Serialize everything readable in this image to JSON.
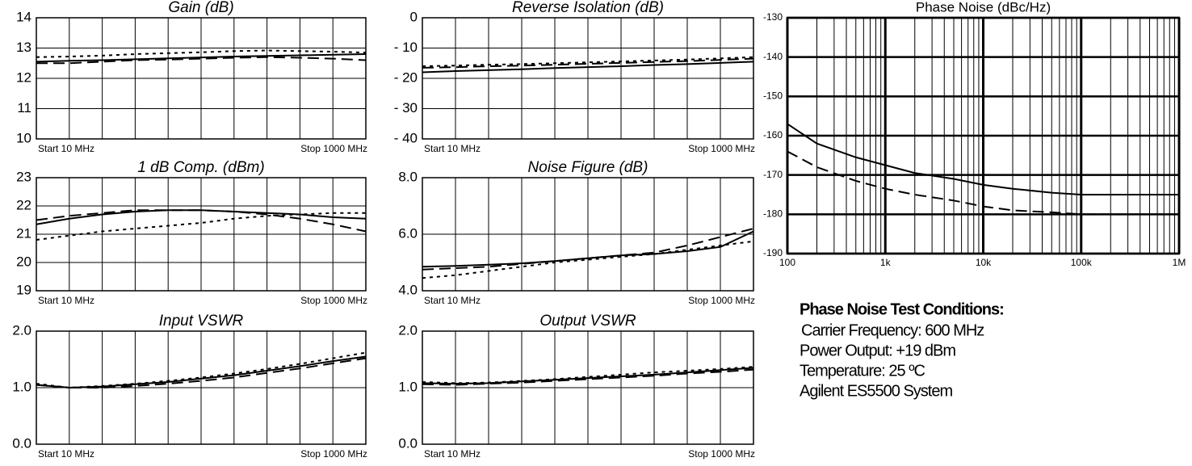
{
  "chart_data": [
    {
      "type": "line",
      "title": "Gain (dB)",
      "x_start_label": "Start 10 MHz",
      "x_stop_label": "Stop 1000 MHz",
      "x": [
        10,
        109,
        208,
        307,
        406,
        505,
        604,
        703,
        802,
        901,
        1000
      ],
      "xlim": [
        10,
        1000
      ],
      "ylim": [
        10,
        14
      ],
      "yticks": [
        10,
        11,
        12,
        13,
        14
      ],
      "grid": true,
      "series": [
        {
          "color": "#000000",
          "dash": "solid",
          "values": [
            12.55,
            12.58,
            12.6,
            12.63,
            12.66,
            12.69,
            12.72,
            12.74,
            12.76,
            12.78,
            12.8
          ]
        },
        {
          "color": "#000000",
          "dash": "dashed",
          "values": [
            12.5,
            12.5,
            12.55,
            12.6,
            12.62,
            12.65,
            12.68,
            12.7,
            12.68,
            12.65,
            12.6
          ]
        },
        {
          "color": "#000000",
          "dash": "dotted",
          "values": [
            12.7,
            12.72,
            12.75,
            12.8,
            12.83,
            12.86,
            12.9,
            12.92,
            12.9,
            12.88,
            12.85
          ]
        }
      ]
    },
    {
      "type": "line",
      "title": "Reverse Isolation (dB)",
      "x_start_label": "Start 10 MHz",
      "x_stop_label": "Stop 1000  MHz",
      "x": [
        10,
        109,
        208,
        307,
        406,
        505,
        604,
        703,
        802,
        901,
        1000
      ],
      "xlim": [
        10,
        1000
      ],
      "ylim": [
        -40,
        0
      ],
      "yticks": [
        {
          "value": -40,
          "label": "- 40"
        },
        {
          "value": -30,
          "label": "- 30"
        },
        {
          "value": -20,
          "label": "- 20"
        },
        {
          "value": -10,
          "label": "- 10"
        },
        0
      ],
      "grid": true,
      "series": [
        {
          "color": "#000000",
          "dash": "solid",
          "values": [
            -18,
            -17.6,
            -17.3,
            -17,
            -16.6,
            -16.3,
            -16,
            -15.6,
            -15.3,
            -14.9,
            -14.5
          ]
        },
        {
          "color": "#000000",
          "dash": "dashed",
          "values": [
            -16.5,
            -16.3,
            -16,
            -15.8,
            -15.5,
            -15.2,
            -14.9,
            -14.6,
            -14.3,
            -13.9,
            -13.5
          ]
        },
        {
          "color": "#000000",
          "dash": "dotted",
          "values": [
            -16,
            -15.8,
            -15.5,
            -15.3,
            -15,
            -14.7,
            -14.4,
            -14.1,
            -13.8,
            -13.4,
            -13
          ]
        }
      ]
    },
    {
      "type": "line",
      "title": "1 dB Comp. (dBm)",
      "x_start_label": "Start 10 MHz",
      "x_stop_label": "Stop 1000  MHz",
      "x": [
        10,
        109,
        208,
        307,
        406,
        505,
        604,
        703,
        802,
        901,
        1000
      ],
      "xlim": [
        10,
        1000
      ],
      "ylim": [
        19,
        23
      ],
      "yticks": [
        19,
        20,
        21,
        22,
        23
      ],
      "grid": true,
      "series": [
        {
          "color": "#000000",
          "dash": "solid",
          "values": [
            21.35,
            21.55,
            21.7,
            21.8,
            21.85,
            21.85,
            21.8,
            21.75,
            21.7,
            21.6,
            21.55
          ]
        },
        {
          "color": "#000000",
          "dash": "dashed",
          "values": [
            21.5,
            21.65,
            21.75,
            21.85,
            21.85,
            21.85,
            21.8,
            21.7,
            21.55,
            21.35,
            21.1
          ]
        },
        {
          "color": "#000000",
          "dash": "dotted",
          "values": [
            20.8,
            20.95,
            21.1,
            21.2,
            21.3,
            21.4,
            21.55,
            21.65,
            21.7,
            21.75,
            21.75
          ]
        }
      ]
    },
    {
      "type": "line",
      "title": "Noise Figure (dB)",
      "x_start_label": "Start 10 MHz",
      "x_stop_label": "Stop 1000  MHz",
      "x": [
        10,
        109,
        208,
        307,
        406,
        505,
        604,
        703,
        802,
        901,
        1000
      ],
      "xlim": [
        10,
        1000
      ],
      "ylim": [
        4,
        8
      ],
      "yticks": [
        {
          "value": 4,
          "label": "4.0"
        },
        {
          "value": 6,
          "label": "6.0"
        },
        {
          "value": 8,
          "label": "8.0"
        }
      ],
      "grid": true,
      "series": [
        {
          "color": "#000000",
          "dash": "solid",
          "values": [
            4.85,
            4.88,
            4.92,
            4.97,
            5.05,
            5.15,
            5.25,
            5.3,
            5.4,
            5.55,
            6.1
          ]
        },
        {
          "color": "#000000",
          "dash": "dashed",
          "values": [
            4.75,
            4.8,
            4.85,
            4.95,
            5.05,
            5.15,
            5.25,
            5.35,
            5.6,
            5.9,
            6.2
          ]
        },
        {
          "color": "#000000",
          "dash": "dotted",
          "values": [
            4.45,
            4.55,
            4.7,
            4.85,
            5.0,
            5.1,
            5.2,
            5.3,
            5.45,
            5.6,
            5.75
          ]
        }
      ]
    },
    {
      "type": "line",
      "title": "Input VSWR",
      "x_start_label": "Start 10 MHz",
      "x_stop_label": "Stop 1000 MHz",
      "x": [
        10,
        109,
        208,
        307,
        406,
        505,
        604,
        703,
        802,
        901,
        1000
      ],
      "xlim": [
        10,
        1000
      ],
      "ylim": [
        0,
        2
      ],
      "yticks": [
        {
          "value": 0,
          "label": "0.0"
        },
        {
          "value": 1,
          "label": "1.0"
        },
        {
          "value": 2,
          "label": "2.0"
        }
      ],
      "grid": true,
      "series": [
        {
          "color": "#000000",
          "dash": "solid",
          "values": [
            1.05,
            1.0,
            1.02,
            1.06,
            1.1,
            1.16,
            1.22,
            1.3,
            1.38,
            1.47,
            1.55
          ]
        },
        {
          "color": "#000000",
          "dash": "dashed",
          "values": [
            1.05,
            1.0,
            1.0,
            1.03,
            1.07,
            1.12,
            1.18,
            1.26,
            1.34,
            1.43,
            1.52
          ]
        },
        {
          "color": "#000000",
          "dash": "dotted",
          "values": [
            1.07,
            1.0,
            1.03,
            1.07,
            1.12,
            1.18,
            1.25,
            1.33,
            1.42,
            1.52,
            1.62
          ]
        }
      ]
    },
    {
      "type": "line",
      "title": "Output VSWR",
      "x_start_label": "Start 10 MHz",
      "x_stop_label": "Stop 1000 MHz",
      "x": [
        10,
        109,
        208,
        307,
        406,
        505,
        604,
        703,
        802,
        901,
        1000
      ],
      "xlim": [
        10,
        1000
      ],
      "ylim": [
        0,
        2
      ],
      "yticks": [
        {
          "value": 0,
          "label": "0.0"
        },
        {
          "value": 1,
          "label": "1.0"
        },
        {
          "value": 2,
          "label": "2.0"
        }
      ],
      "grid": true,
      "series": [
        {
          "color": "#000000",
          "dash": "solid",
          "values": [
            1.08,
            1.07,
            1.08,
            1.11,
            1.14,
            1.17,
            1.2,
            1.23,
            1.27,
            1.31,
            1.35
          ]
        },
        {
          "color": "#000000",
          "dash": "dashed",
          "values": [
            1.06,
            1.05,
            1.07,
            1.09,
            1.12,
            1.15,
            1.18,
            1.21,
            1.25,
            1.28,
            1.32
          ]
        },
        {
          "color": "#000000",
          "dash": "dotted",
          "values": [
            1.1,
            1.08,
            1.09,
            1.12,
            1.15,
            1.19,
            1.23,
            1.27,
            1.3,
            1.33,
            1.37
          ]
        }
      ]
    },
    {
      "type": "line",
      "title": "Phase Noise (dBc/Hz)",
      "xscale": "log",
      "x": [
        100,
        200,
        500,
        1000,
        2000,
        5000,
        10000,
        20000,
        50000,
        100000,
        200000,
        500000,
        1000000
      ],
      "xlim": [
        100,
        1000000
      ],
      "xticks": [
        100,
        {
          "value": 1000,
          "label": "1k"
        },
        {
          "value": 10000,
          "label": "10k"
        },
        {
          "value": 100000,
          "label": "100k"
        },
        {
          "value": 1000000,
          "label": "1M"
        }
      ],
      "ylim": [
        -190,
        -130
      ],
      "yticks": [
        -190,
        -180,
        -170,
        -160,
        -150,
        -140,
        -130
      ],
      "grid": true,
      "series": [
        {
          "color": "#000000",
          "dash": "solid",
          "values": [
            -157,
            -162,
            -165.5,
            -167.5,
            -169.5,
            -171,
            -172.5,
            -173.5,
            -174.5,
            -175,
            -175,
            -175,
            -175
          ]
        },
        {
          "color": "#000000",
          "dash": "dashed",
          "values": [
            -164,
            -168,
            -171.5,
            -173.5,
            -175,
            -176.5,
            -178,
            -179,
            -179.5,
            -180,
            -180,
            -180,
            -180
          ]
        }
      ]
    }
  ],
  "conditions": {
    "title": "Phase Noise Test Conditions:",
    "lines": [
      "Carrier Frequency: 600 MHz",
      "Power Output: +19 dBm",
      "Temperature: 25 ºC",
      "Agilent ES5500 System"
    ]
  }
}
